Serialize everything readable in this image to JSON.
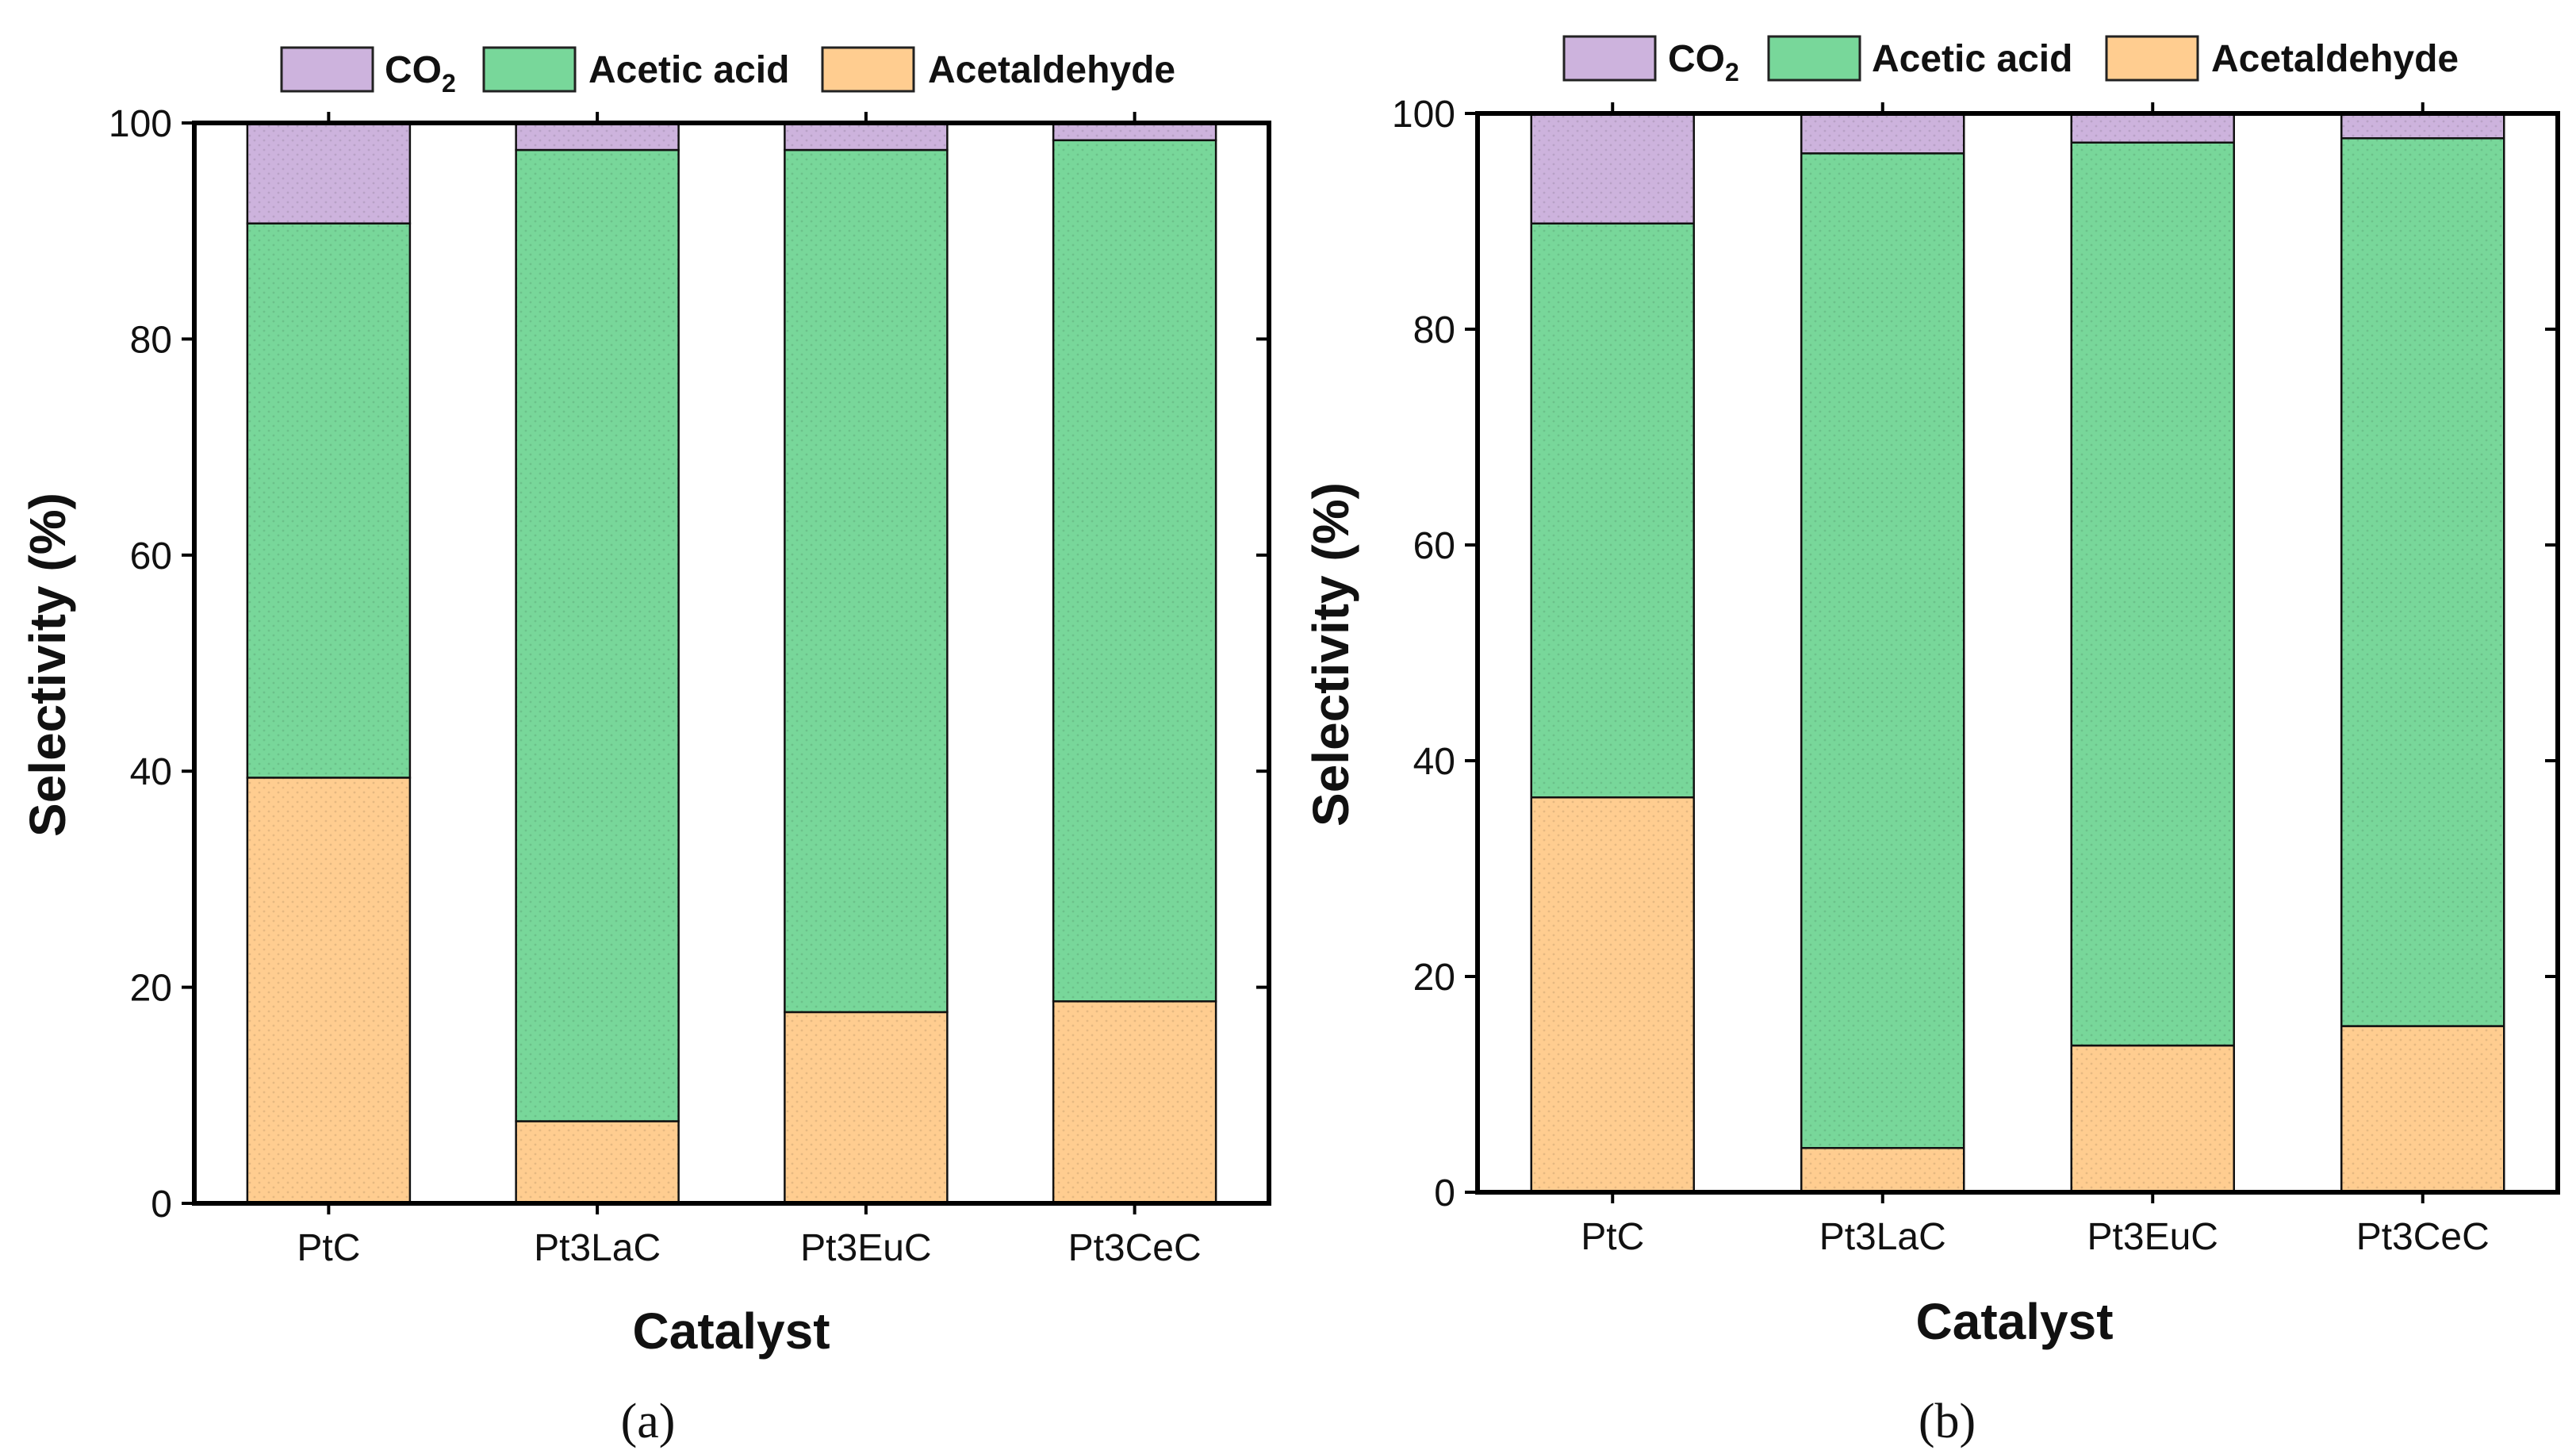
{
  "colors": {
    "co2": "#cdb3dd",
    "acetic_acid": "#78d79a",
    "acetaldehyde": "#ffcd90",
    "axis": "#000000"
  },
  "legend": {
    "co2_label": "CO",
    "co2_sub": "2",
    "acetic_label": "Acetic acid",
    "acetaldehyde_label": "Acetaldehyde"
  },
  "chart_data": [
    {
      "type": "bar",
      "stacked": true,
      "panel_label": "(a)",
      "xlabel": "Catalyst",
      "ylabel": "Selectivity (%)",
      "ylim": [
        0,
        100
      ],
      "yticks": [
        0,
        20,
        40,
        60,
        80,
        100
      ],
      "categories": [
        "PtC",
        "Pt3LaC",
        "Pt3EuC",
        "Pt3CeC"
      ],
      "series": [
        {
          "name": "Acetaldehyde",
          "values": [
            39.4,
            7.6,
            17.7,
            18.7
          ]
        },
        {
          "name": "Acetic acid",
          "values": [
            51.3,
            89.9,
            79.8,
            79.7
          ]
        },
        {
          "name": "CO2",
          "values": [
            9.3,
            2.5,
            2.5,
            1.6
          ]
        }
      ]
    },
    {
      "type": "bar",
      "stacked": true,
      "panel_label": "(b)",
      "xlabel": "Catalyst",
      "ylabel": "Selectivity (%)",
      "ylim": [
        0,
        100
      ],
      "yticks": [
        0,
        20,
        40,
        60,
        80,
        100
      ],
      "categories": [
        "PtC",
        "Pt3LaC",
        "Pt3EuC",
        "Pt3CeC"
      ],
      "series": [
        {
          "name": "Acetaldehyde",
          "values": [
            36.6,
            4.1,
            13.6,
            15.4
          ]
        },
        {
          "name": "Acetic acid",
          "values": [
            53.2,
            92.2,
            83.7,
            82.3
          ]
        },
        {
          "name": "CO2",
          "values": [
            10.2,
            3.7,
            2.7,
            2.3
          ]
        }
      ]
    }
  ]
}
